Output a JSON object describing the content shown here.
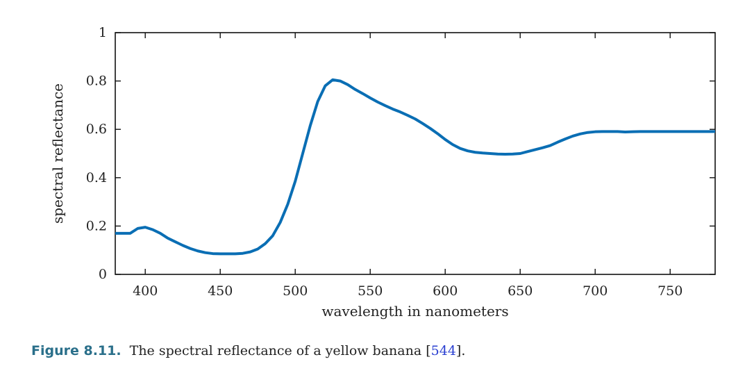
{
  "chart_data": {
    "type": "line",
    "title": "",
    "xlabel": "wavelength in nanometers",
    "ylabel": "spectral reflectance",
    "xlim": [
      380,
      780
    ],
    "ylim": [
      0,
      1
    ],
    "x_ticks": [
      400,
      450,
      500,
      550,
      600,
      650,
      700,
      750
    ],
    "x_tick_labels": [
      "400",
      "450",
      "500",
      "550",
      "600",
      "650",
      "700",
      "750"
    ],
    "y_ticks": [
      0,
      0.2,
      0.4,
      0.6,
      0.8,
      1
    ],
    "y_tick_labels": [
      "0",
      "0.2",
      "0.4",
      "0.6",
      "0.8",
      "1"
    ],
    "grid": false,
    "line_color": "#0a6eb4",
    "series": [
      {
        "x": [
          380,
          385,
          390,
          395,
          400,
          405,
          410,
          415,
          420,
          425,
          430,
          435,
          440,
          445,
          450,
          455,
          460,
          465,
          470,
          475,
          480,
          485,
          490,
          495,
          500,
          505,
          510,
          515,
          520,
          525,
          530,
          535,
          540,
          545,
          550,
          555,
          560,
          565,
          570,
          575,
          580,
          585,
          590,
          595,
          600,
          605,
          610,
          615,
          620,
          625,
          630,
          635,
          640,
          645,
          650,
          655,
          660,
          665,
          670,
          675,
          680,
          685,
          690,
          695,
          700,
          705,
          710,
          715,
          720,
          725,
          730,
          740,
          750,
          760,
          770,
          780
        ],
        "y": [
          0.17,
          0.17,
          0.17,
          0.19,
          0.195,
          0.185,
          0.17,
          0.15,
          0.135,
          0.12,
          0.107,
          0.097,
          0.09,
          0.086,
          0.085,
          0.085,
          0.085,
          0.087,
          0.093,
          0.105,
          0.127,
          0.16,
          0.215,
          0.29,
          0.385,
          0.5,
          0.615,
          0.715,
          0.78,
          0.805,
          0.8,
          0.785,
          0.765,
          0.748,
          0.73,
          0.713,
          0.698,
          0.684,
          0.672,
          0.658,
          0.643,
          0.624,
          0.604,
          0.582,
          0.558,
          0.537,
          0.521,
          0.511,
          0.505,
          0.502,
          0.5,
          0.498,
          0.497,
          0.498,
          0.5,
          0.508,
          0.516,
          0.524,
          0.533,
          0.547,
          0.56,
          0.572,
          0.581,
          0.587,
          0.59,
          0.591,
          0.591,
          0.591,
          0.589,
          0.59,
          0.591,
          0.591,
          0.591,
          0.591,
          0.591,
          0.591
        ]
      }
    ]
  },
  "caption": {
    "figure_number": "Figure 8.11.",
    "text": "The spectral reflectance of a yellow banana ",
    "cite_open": "[",
    "cite_ref": "544",
    "cite_close": "].",
    "label_color": "#2a6f8a",
    "link_color": "#2a3fd1"
  }
}
